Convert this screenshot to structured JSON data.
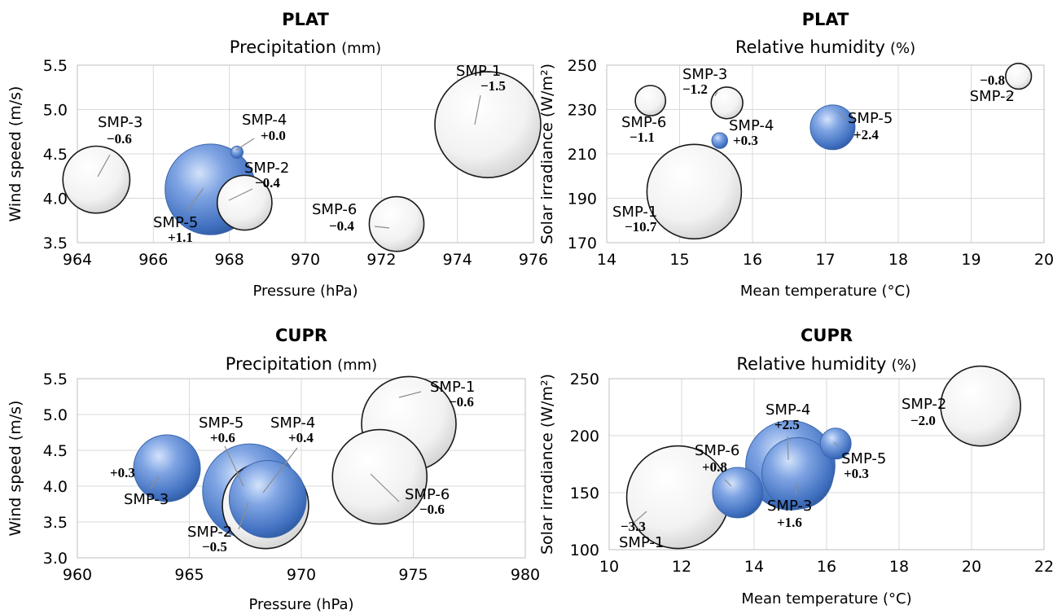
{
  "colors": {
    "blue_bubble": "#4f7fcc",
    "white_bubble": "#f2f2f2",
    "grid": "#d9d9d9",
    "border": "#bfbfbf"
  },
  "chart_data": [
    {
      "type": "scatter",
      "title": "PLAT",
      "subtitle": "Precipitation",
      "subtitle_unit": "(mm)",
      "xlabel": "Pressure (hPa)",
      "ylabel": "Wind speed (m/s)",
      "xlim": [
        964,
        976
      ],
      "ylim": [
        3.5,
        5.5
      ],
      "xticks": [
        "964",
        "966",
        "968",
        "970",
        "972",
        "974",
        "976"
      ],
      "yticks": [
        "3.5",
        "4.0",
        "4.5",
        "5.0",
        "5.5"
      ],
      "grid": true,
      "points": [
        {
          "name": "SMP-1",
          "value": "−1.5",
          "x": 974.8,
          "y": 4.83,
          "size": 1.5,
          "color": "white"
        },
        {
          "name": "SMP-2",
          "value": "−0.4",
          "x": 968.4,
          "y": 3.95,
          "size": 0.4,
          "color": "white"
        },
        {
          "name": "SMP-3",
          "value": "−0.6",
          "x": 964.5,
          "y": 4.21,
          "size": 0.6,
          "color": "white"
        },
        {
          "name": "SMP-4",
          "value": "+0.0",
          "x": 968.2,
          "y": 4.52,
          "size": 0.02,
          "color": "blue"
        },
        {
          "name": "SMP-5",
          "value": "+1.1",
          "x": 967.5,
          "y": 4.1,
          "size": 1.1,
          "color": "blue"
        },
        {
          "name": "SMP-6",
          "value": "−0.4",
          "x": 972.4,
          "y": 3.71,
          "size": 0.4,
          "color": "white"
        }
      ]
    },
    {
      "type": "scatter",
      "title": "PLAT",
      "subtitle": "Relative humidity",
      "subtitle_unit": "(%)",
      "xlabel": "Mean temperature (°C)",
      "ylabel": "Solar irradiance (W/m²)",
      "xlim": [
        14,
        20
      ],
      "ylim": [
        170,
        250
      ],
      "xticks": [
        "14",
        "15",
        "16",
        "17",
        "18",
        "19",
        "20"
      ],
      "yticks": [
        "170",
        "190",
        "210",
        "230",
        "250"
      ],
      "grid": true,
      "points": [
        {
          "name": "SMP-1",
          "value": "−10.7",
          "x": 15.2,
          "y": 193,
          "size": 10.7,
          "color": "white"
        },
        {
          "name": "SMP-2",
          "value": "−0.8",
          "x": 19.65,
          "y": 245,
          "size": 0.8,
          "color": "white"
        },
        {
          "name": "SMP-3",
          "value": "−1.2",
          "x": 15.65,
          "y": 233,
          "size": 1.2,
          "color": "white"
        },
        {
          "name": "SMP-4",
          "value": "+0.3",
          "x": 15.55,
          "y": 216,
          "size": 0.3,
          "color": "blue"
        },
        {
          "name": "SMP-5",
          "value": "+2.4",
          "x": 17.1,
          "y": 222,
          "size": 2.4,
          "color": "blue"
        },
        {
          "name": "SMP-6",
          "value": "−1.1",
          "x": 14.6,
          "y": 234,
          "size": 1.1,
          "color": "white"
        }
      ]
    },
    {
      "type": "scatter",
      "title": "CUPR",
      "subtitle": "Precipitation",
      "subtitle_unit": "(mm)",
      "xlabel": "Pressure (hPa)",
      "ylabel": "Wind speed (m/s)",
      "xlim": [
        960,
        980
      ],
      "ylim": [
        3.0,
        5.5
      ],
      "xticks": [
        "960",
        "965",
        "970",
        "975",
        "980"
      ],
      "yticks": [
        "3.0",
        "3.5",
        "4.0",
        "4.5",
        "5.0",
        "5.5"
      ],
      "grid": true,
      "points": [
        {
          "name": "SMP-1",
          "value": "−0.6",
          "x": 974.8,
          "y": 4.87,
          "size": 0.6,
          "color": "white"
        },
        {
          "name": "SMP-6",
          "value": "−0.6",
          "x": 973.5,
          "y": 4.13,
          "size": 0.6,
          "color": "white"
        },
        {
          "name": "SMP-2",
          "value": "−0.5",
          "x": 968.4,
          "y": 3.73,
          "size": 0.5,
          "color": "white"
        },
        {
          "name": "SMP-5",
          "value": "+0.6",
          "x": 967.7,
          "y": 3.93,
          "size": 0.6,
          "color": "blue"
        },
        {
          "name": "SMP-4",
          "value": "+0.4",
          "x": 968.5,
          "y": 3.82,
          "size": 0.4,
          "color": "blue"
        },
        {
          "name": "SMP-3",
          "value": "+0.3",
          "x": 964.0,
          "y": 4.25,
          "size": 0.3,
          "color": "blue"
        }
      ]
    },
    {
      "type": "scatter",
      "title": "CUPR",
      "subtitle": "Relative humidity",
      "subtitle_unit": "(%)",
      "xlabel": "Mean temperature (°C)",
      "ylabel": "Solar irradiance (W/m²)",
      "xlim": [
        10,
        22
      ],
      "ylim": [
        100,
        250
      ],
      "xticks": [
        "10",
        "12",
        "14",
        "16",
        "18",
        "20",
        "22"
      ],
      "yticks": [
        "100",
        "150",
        "200",
        "250"
      ],
      "grid": true,
      "points": [
        {
          "name": "SMP-1",
          "value": "−3.3",
          "x": 11.9,
          "y": 146,
          "size": 3.3,
          "color": "white"
        },
        {
          "name": "SMP-2",
          "value": "−2.0",
          "x": 20.25,
          "y": 226,
          "size": 2.0,
          "color": "white"
        },
        {
          "name": "SMP-4",
          "value": "+2.5",
          "x": 15.0,
          "y": 174,
          "size": 2.5,
          "color": "blue"
        },
        {
          "name": "SMP-3",
          "value": "+1.6",
          "x": 15.2,
          "y": 167,
          "size": 1.6,
          "color": "blue"
        },
        {
          "name": "SMP-6",
          "value": "+0.8",
          "x": 13.55,
          "y": 150,
          "size": 0.8,
          "color": "blue"
        },
        {
          "name": "SMP-5",
          "value": "+0.3",
          "x": 16.25,
          "y": 193,
          "size": 0.3,
          "color": "blue"
        }
      ]
    }
  ]
}
